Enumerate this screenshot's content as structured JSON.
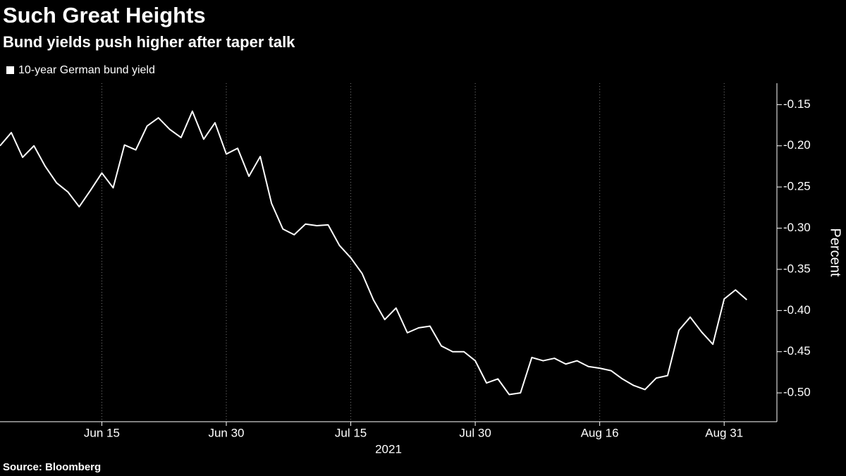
{
  "chart_data": {
    "type": "line",
    "title": "Such Great Heights",
    "subtitle": "Bund yields push higher after taper talk",
    "source": "Source: Bloomberg",
    "xlabel": "2021",
    "ylabel": "Percent",
    "x": [
      "2021-06-02",
      "2021-06-03",
      "2021-06-04",
      "2021-06-07",
      "2021-06-08",
      "2021-06-09",
      "2021-06-10",
      "2021-06-11",
      "2021-06-14",
      "2021-06-15",
      "2021-06-16",
      "2021-06-17",
      "2021-06-18",
      "2021-06-21",
      "2021-06-22",
      "2021-06-23",
      "2021-06-24",
      "2021-06-25",
      "2021-06-28",
      "2021-06-29",
      "2021-06-30",
      "2021-07-01",
      "2021-07-02",
      "2021-07-05",
      "2021-07-06",
      "2021-07-07",
      "2021-07-08",
      "2021-07-09",
      "2021-07-12",
      "2021-07-13",
      "2021-07-14",
      "2021-07-15",
      "2021-07-16",
      "2021-07-19",
      "2021-07-20",
      "2021-07-21",
      "2021-07-22",
      "2021-07-23",
      "2021-07-26",
      "2021-07-27",
      "2021-07-28",
      "2021-07-29",
      "2021-07-30",
      "2021-08-02",
      "2021-08-03",
      "2021-08-04",
      "2021-08-05",
      "2021-08-06",
      "2021-08-09",
      "2021-08-10",
      "2021-08-11",
      "2021-08-12",
      "2021-08-13",
      "2021-08-16",
      "2021-08-17",
      "2021-08-18",
      "2021-08-19",
      "2021-08-20",
      "2021-08-23",
      "2021-08-24",
      "2021-08-25",
      "2021-08-26",
      "2021-08-27",
      "2021-08-30",
      "2021-08-31",
      "2021-09-01",
      "2021-09-02"
    ],
    "series": [
      {
        "name": "10-year German bund yield",
        "color": "#ffffff",
        "values": [
          -0.2,
          -0.184,
          -0.214,
          -0.2,
          -0.225,
          -0.245,
          -0.256,
          -0.274,
          -0.254,
          -0.233,
          -0.251,
          -0.199,
          -0.205,
          -0.176,
          -0.166,
          -0.18,
          -0.19,
          -0.158,
          -0.192,
          -0.172,
          -0.21,
          -0.203,
          -0.237,
          -0.213,
          -0.27,
          -0.301,
          -0.308,
          -0.295,
          -0.297,
          -0.296,
          -0.321,
          -0.336,
          -0.355,
          -0.387,
          -0.411,
          -0.397,
          -0.427,
          -0.421,
          -0.419,
          -0.443,
          -0.45,
          -0.45,
          -0.461,
          -0.488,
          -0.483,
          -0.502,
          -0.5,
          -0.457,
          -0.461,
          -0.458,
          -0.465,
          -0.461,
          -0.468,
          -0.47,
          -0.473,
          -0.483,
          -0.491,
          -0.496,
          -0.482,
          -0.479,
          -0.424,
          -0.408,
          -0.426,
          -0.441,
          -0.386,
          -0.375,
          -0.387
        ]
      }
    ],
    "xticks": [
      {
        "value": "2021-06-15",
        "label": "Jun 15"
      },
      {
        "value": "2021-06-30",
        "label": "Jun 30"
      },
      {
        "value": "2021-07-15",
        "label": "Jul 15"
      },
      {
        "value": "2021-07-30",
        "label": "Jul 30"
      },
      {
        "value": "2021-08-16",
        "label": "Aug 16"
      },
      {
        "value": "2021-08-31",
        "label": "Aug 31"
      }
    ],
    "ylim": [
      -0.535,
      -0.124
    ],
    "yticks": [
      -0.15,
      {
        "value": -0.2,
        "label": "-0.20"
      },
      -0.25,
      {
        "value": -0.3,
        "label": "-0.30"
      },
      -0.35,
      {
        "value": -0.4,
        "label": "-0.40"
      },
      -0.45,
      {
        "value": -0.5,
        "label": "-0.50"
      }
    ],
    "xgrid": true,
    "legend": "top-left"
  }
}
